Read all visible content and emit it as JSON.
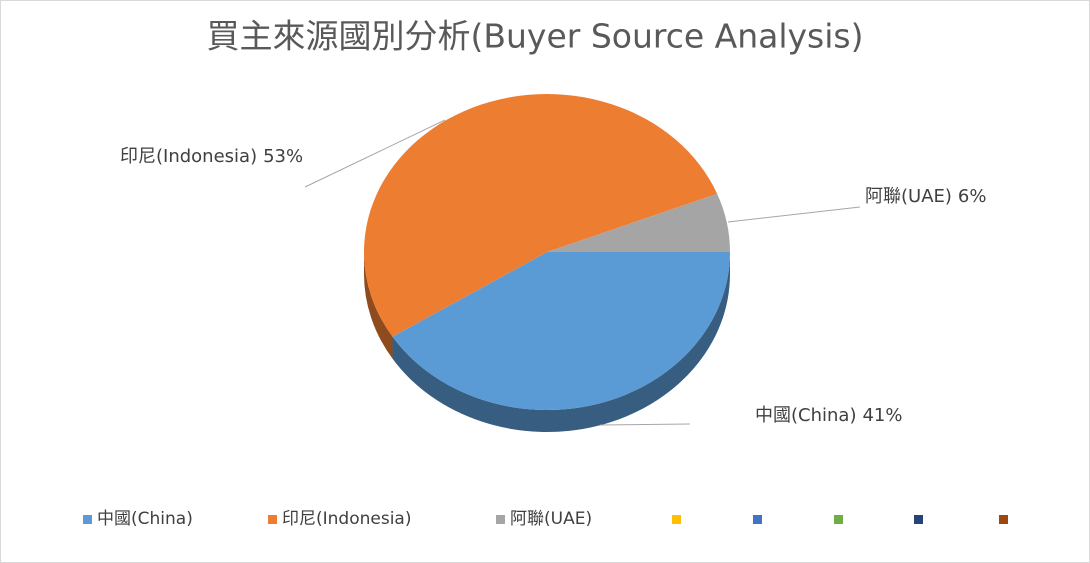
{
  "chart_data": {
    "type": "pie3d",
    "title": "買主來源國別分析(Buyer Source Analysis)",
    "categories": [
      "中國(China)",
      "印尼(Indonesia)",
      "阿聯(UAE)",
      null,
      null,
      null,
      null,
      null
    ],
    "values": [
      41,
      53,
      6,
      null,
      null,
      null,
      null,
      null
    ],
    "value_labels": [
      "41%",
      "53%",
      "6%",
      null,
      null,
      null,
      null,
      null
    ],
    "colors": [
      "#5b9bd5",
      "#ed7d31",
      "#a5a5a5",
      "#ffc000",
      "#4472c4",
      "#70ad47",
      "#264478",
      "#9e480e"
    ],
    "legend": "bottom"
  }
}
